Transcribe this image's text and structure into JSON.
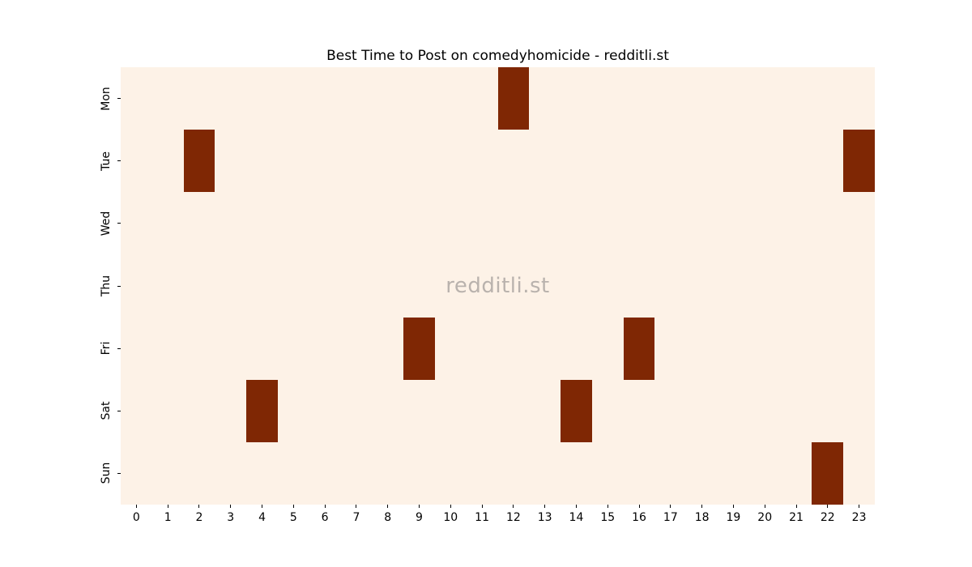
{
  "chart_data": {
    "type": "heatmap",
    "title": "Best Time to Post on comedyhomicide - redditli.st",
    "watermark": "redditli.st",
    "xlabel": "",
    "ylabel": "",
    "x": [
      0,
      1,
      2,
      3,
      4,
      5,
      6,
      7,
      8,
      9,
      10,
      11,
      12,
      13,
      14,
      15,
      16,
      17,
      18,
      19,
      20,
      21,
      22,
      23
    ],
    "categories_y": [
      "Mon",
      "Tue",
      "Wed",
      "Thu",
      "Fri",
      "Sat",
      "Sun"
    ],
    "values": [
      [
        0,
        0,
        0,
        0,
        0,
        0,
        0,
        0,
        0,
        0,
        0,
        0,
        1,
        0,
        0,
        0,
        0,
        0,
        0,
        0,
        0,
        0,
        0,
        0
      ],
      [
        0,
        0,
        1,
        0,
        0,
        0,
        0,
        0,
        0,
        0,
        0,
        0,
        0,
        0,
        0,
        0,
        0,
        0,
        0,
        0,
        0,
        0,
        0,
        1
      ],
      [
        0,
        0,
        0,
        0,
        0,
        0,
        0,
        0,
        0,
        0,
        0,
        0,
        0,
        0,
        0,
        0,
        0,
        0,
        0,
        0,
        0,
        0,
        0,
        0
      ],
      [
        0,
        0,
        0,
        0,
        0,
        0,
        0,
        0,
        0,
        0,
        0,
        0,
        0,
        0,
        0,
        0,
        0,
        0,
        0,
        0,
        0,
        0,
        0,
        0
      ],
      [
        0,
        0,
        0,
        0,
        0,
        0,
        0,
        0,
        0,
        1,
        0,
        0,
        0,
        0,
        0,
        0,
        1,
        0,
        0,
        0,
        0,
        0,
        0,
        0
      ],
      [
        0,
        0,
        0,
        0,
        1,
        0,
        0,
        0,
        0,
        0,
        0,
        0,
        0,
        0,
        1,
        0,
        0,
        0,
        0,
        0,
        0,
        0,
        0,
        0
      ],
      [
        0,
        0,
        0,
        0,
        0,
        0,
        0,
        0,
        0,
        0,
        0,
        0,
        0,
        0,
        0,
        0,
        0,
        0,
        0,
        0,
        0,
        0,
        1,
        0
      ]
    ],
    "highlighted_cells": [
      {
        "day": "Mon",
        "hour": 12
      },
      {
        "day": "Tue",
        "hour": 2
      },
      {
        "day": "Tue",
        "hour": 23
      },
      {
        "day": "Fri",
        "hour": 9
      },
      {
        "day": "Fri",
        "hour": 16
      },
      {
        "day": "Sat",
        "hour": 4
      },
      {
        "day": "Sat",
        "hour": 14
      },
      {
        "day": "Sun",
        "hour": 22
      }
    ],
    "grid": "off",
    "legend": "none",
    "colors": {
      "figure_bg": "#ffffff",
      "cell_low": "#fdf2e7",
      "cell_high": "#7f2704",
      "tick_text": "#000000",
      "watermark_text": "#b9b2ad"
    }
  }
}
